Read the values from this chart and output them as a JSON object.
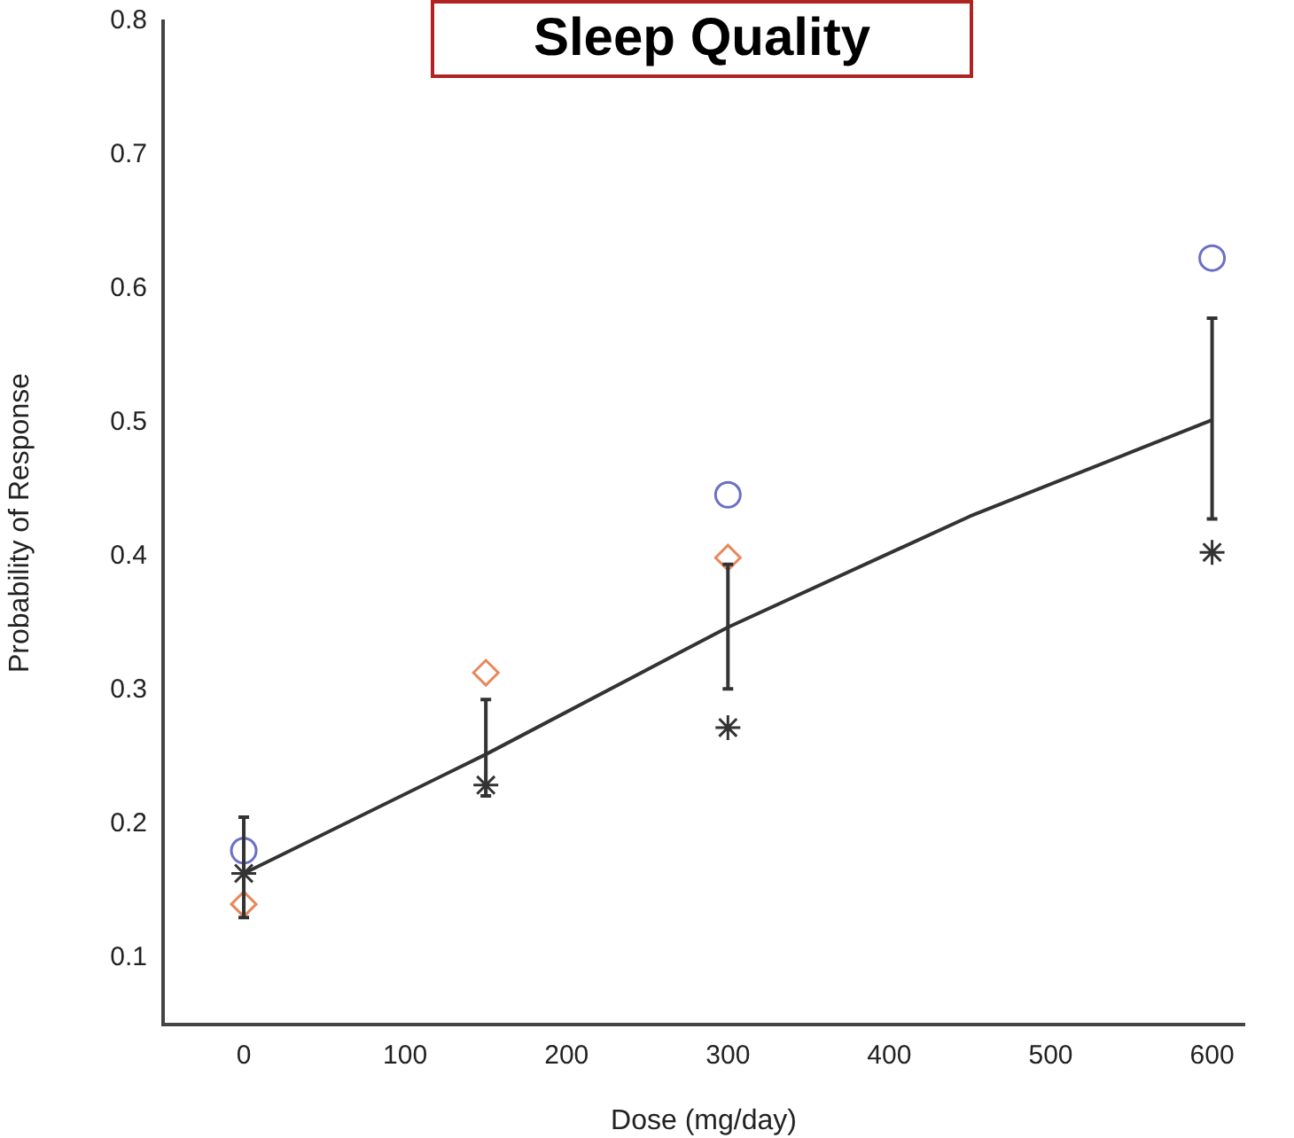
{
  "chart_data": {
    "type": "scatter",
    "title": "Sleep Quality",
    "xlabel": "Dose (mg/day)",
    "ylabel": "Probability of Response",
    "xlim": [
      -50,
      620
    ],
    "xticks": [
      0,
      100,
      200,
      300,
      400,
      500,
      600
    ],
    "ylim": [
      0.05,
      0.8
    ],
    "yticks": [
      0.1,
      0.2,
      0.3,
      0.4,
      0.5,
      0.6,
      0.7,
      0.8
    ],
    "grid": false,
    "legend": false,
    "series": [
      {
        "type": "line",
        "color": "#333333",
        "marker": "none",
        "x": [
          0,
          150,
          300,
          450,
          600
        ],
        "values": [
          0.163,
          0.252,
          0.347,
          0.43,
          0.502
        ],
        "errors": [
          [
            0.13,
            0.205
          ],
          [
            0.221,
            0.293
          ],
          [
            0.301,
            0.394
          ],
          null,
          [
            0.428,
            0.578
          ]
        ]
      },
      {
        "type": "scatter",
        "color": "#6b70c4",
        "marker": "circle",
        "x": [
          0,
          300,
          600
        ],
        "values": [
          0.18,
          0.446,
          0.623
        ]
      },
      {
        "type": "scatter",
        "color": "#e8875a",
        "marker": "diamond",
        "x": [
          0,
          150,
          300
        ],
        "values": [
          0.14,
          0.313,
          0.399
        ]
      },
      {
        "type": "scatter",
        "color": "#333333",
        "marker": "cross",
        "x": [
          0,
          150,
          300,
          600
        ],
        "values": [
          0.163,
          0.229,
          0.272,
          0.403
        ]
      }
    ]
  }
}
